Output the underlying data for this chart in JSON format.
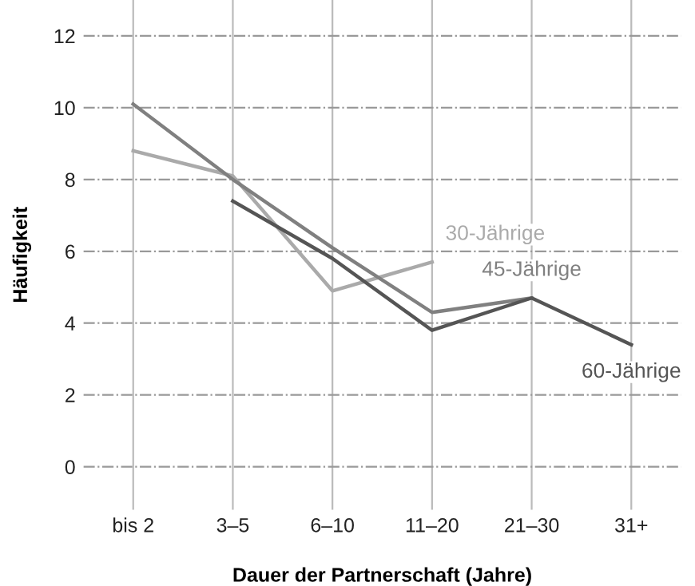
{
  "chart_data": {
    "type": "line",
    "xlabel": "Dauer der Partnerschaft (Jahre)",
    "ylabel": "Häufigkeit",
    "categories": [
      "bis 2",
      "3–5",
      "6–10",
      "11–20",
      "21–30",
      "31+"
    ],
    "series": [
      {
        "name": "30-Jährige",
        "color": "#aaaaaa",
        "values": [
          8.8,
          8.1,
          4.9,
          5.7,
          null,
          null
        ]
      },
      {
        "name": "45-Jährige",
        "color": "#808080",
        "values": [
          10.1,
          8.0,
          6.1,
          4.3,
          4.7,
          null
        ]
      },
      {
        "name": "60-Jährige",
        "color": "#555555",
        "values": [
          null,
          7.4,
          5.8,
          3.8,
          4.7,
          3.4
        ]
      }
    ],
    "ylim": [
      -1.2,
      13
    ],
    "yticks": [
      0,
      2,
      4,
      6,
      8,
      10,
      12
    ],
    "grid": true,
    "legend": false
  }
}
